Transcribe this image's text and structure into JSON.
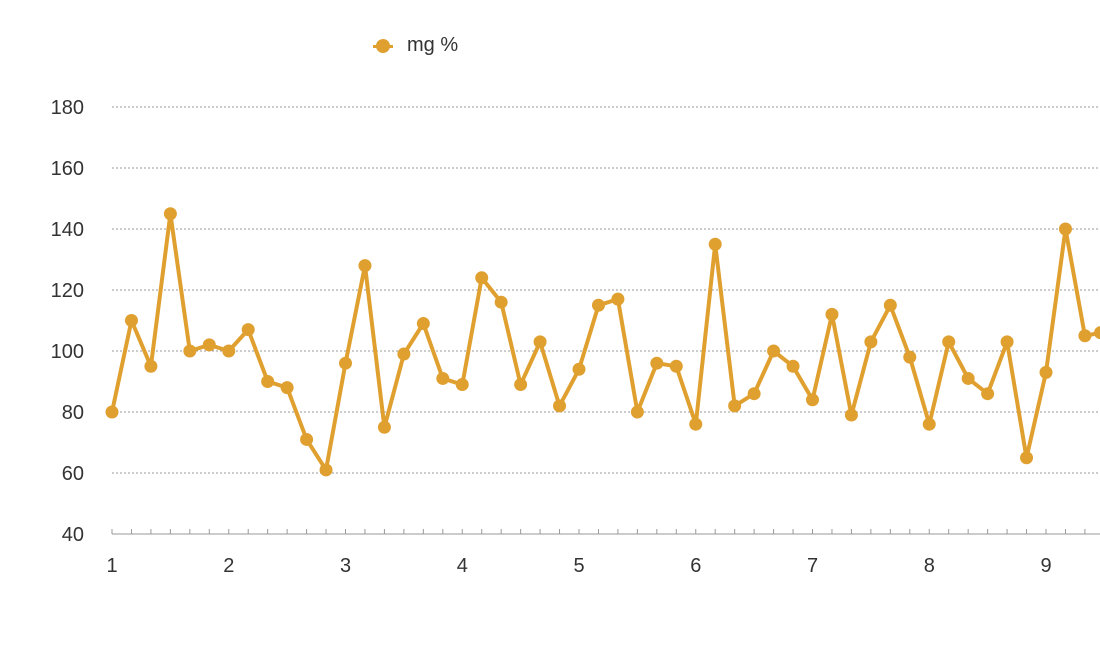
{
  "colors": {
    "series": "#E0A030",
    "grid": "#999999",
    "axis": "#9a9a9a",
    "text": "#333333"
  },
  "legend": {
    "label": "mg %"
  },
  "chart_data": {
    "type": "line",
    "title": "",
    "xlabel": "",
    "ylabel": "",
    "ylim": [
      40,
      180
    ],
    "xlim": [
      1,
      9.47
    ],
    "yticks": [
      40,
      60,
      80,
      100,
      120,
      140,
      160,
      180
    ],
    "xticks": [
      1,
      2,
      3,
      4,
      5,
      6,
      7,
      8,
      9
    ],
    "grid": true,
    "legend_position": "top-center",
    "series": [
      {
        "name": "mg %",
        "x": [
          1,
          1.1667,
          1.3333,
          1.5,
          1.6667,
          1.8333,
          2,
          2.1667,
          2.3333,
          2.5,
          2.6667,
          2.8333,
          3,
          3.1667,
          3.3333,
          3.5,
          3.6667,
          3.8333,
          4,
          4.1667,
          4.3333,
          4.5,
          4.6667,
          4.8333,
          5,
          5.1667,
          5.3333,
          5.5,
          5.6667,
          5.8333,
          6,
          6.1667,
          6.3333,
          6.5,
          6.6667,
          6.8333,
          7,
          7.1667,
          7.3333,
          7.5,
          7.6667,
          7.8333,
          8,
          8.1667,
          8.3333,
          8.5,
          8.6667,
          8.8333,
          9,
          9.1667,
          9.3333,
          9.4667
        ],
        "values": [
          80,
          110,
          95,
          145,
          100,
          102,
          100,
          107,
          90,
          88,
          71,
          61,
          96,
          128,
          75,
          99,
          109,
          91,
          89,
          124,
          116,
          89,
          103,
          82,
          94,
          115,
          117,
          80,
          96,
          95,
          76,
          135,
          82,
          86,
          100,
          95,
          84,
          112,
          79,
          103,
          115,
          98,
          76,
          103,
          91,
          86,
          103,
          65,
          93,
          140,
          105,
          106
        ]
      }
    ]
  }
}
